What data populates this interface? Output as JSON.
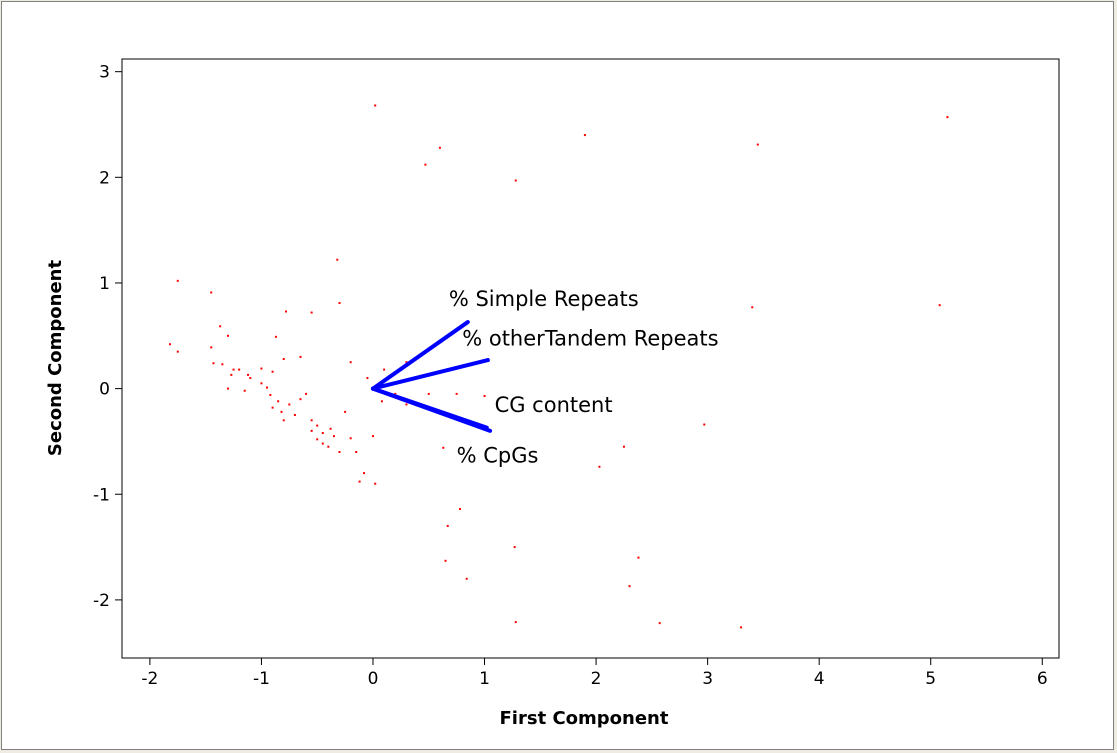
{
  "chart_data": {
    "type": "scatter",
    "title": "",
    "xlabel": "First Component",
    "ylabel": "Second Component",
    "xlim": [
      -2.25,
      6.15
    ],
    "ylim": [
      -2.55,
      3.12
    ],
    "x_ticks": [
      -2,
      -1,
      0,
      1,
      2,
      3,
      4,
      5,
      6
    ],
    "y_ticks": [
      -2,
      -1,
      0,
      1,
      2,
      3
    ],
    "grid": false,
    "point_color": "#ff0000",
    "vector_color": "#0000ff",
    "points": [
      {
        "x": 0.02,
        "y": 2.68
      },
      {
        "x": 0.6,
        "y": 2.28
      },
      {
        "x": 0.47,
        "y": 2.12
      },
      {
        "x": 1.28,
        "y": 1.97
      },
      {
        "x": 1.9,
        "y": 2.4
      },
      {
        "x": 3.45,
        "y": 2.31
      },
      {
        "x": 5.15,
        "y": 2.57
      },
      {
        "x": 3.4,
        "y": 0.77
      },
      {
        "x": 5.08,
        "y": 0.79
      },
      {
        "x": 2.97,
        "y": -0.34
      },
      {
        "x": 2.25,
        "y": -0.55
      },
      {
        "x": 2.03,
        "y": -0.74
      },
      {
        "x": 1.27,
        "y": -1.5
      },
      {
        "x": 2.38,
        "y": -1.6
      },
      {
        "x": 2.3,
        "y": -1.87
      },
      {
        "x": 1.28,
        "y": -2.21
      },
      {
        "x": 2.57,
        "y": -2.22
      },
      {
        "x": 3.3,
        "y": -2.26
      },
      {
        "x": 0.78,
        "y": -1.14
      },
      {
        "x": 0.67,
        "y": -1.3
      },
      {
        "x": 0.65,
        "y": -1.63
      },
      {
        "x": 0.84,
        "y": -1.8
      },
      {
        "x": 0.63,
        "y": -0.56
      },
      {
        "x": -0.32,
        "y": 1.22
      },
      {
        "x": -0.3,
        "y": 0.81
      },
      {
        "x": -1.75,
        "y": 1.02
      },
      {
        "x": -1.45,
        "y": 0.91
      },
      {
        "x": -0.78,
        "y": 0.73
      },
      {
        "x": -0.55,
        "y": 0.72
      },
      {
        "x": -1.37,
        "y": 0.59
      },
      {
        "x": -1.3,
        "y": 0.5
      },
      {
        "x": -0.87,
        "y": 0.49
      },
      {
        "x": -1.82,
        "y": 0.42
      },
      {
        "x": -1.75,
        "y": 0.35
      },
      {
        "x": -1.45,
        "y": 0.39
      },
      {
        "x": -1.43,
        "y": 0.24
      },
      {
        "x": -1.35,
        "y": 0.23
      },
      {
        "x": -1.2,
        "y": 0.18
      },
      {
        "x": -1.12,
        "y": 0.13
      },
      {
        "x": -1.0,
        "y": 0.19
      },
      {
        "x": -0.9,
        "y": 0.16
      },
      {
        "x": -0.8,
        "y": 0.28
      },
      {
        "x": -0.65,
        "y": 0.3
      },
      {
        "x": -1.27,
        "y": 0.13
      },
      {
        "x": -1.1,
        "y": 0.1
      },
      {
        "x": -1.0,
        "y": 0.05
      },
      {
        "x": -0.95,
        "y": 0.01
      },
      {
        "x": -1.15,
        "y": -0.02
      },
      {
        "x": -0.92,
        "y": -0.06
      },
      {
        "x": -0.85,
        "y": -0.12
      },
      {
        "x": -0.75,
        "y": -0.15
      },
      {
        "x": -0.9,
        "y": -0.18
      },
      {
        "x": -0.82,
        "y": -0.22
      },
      {
        "x": -0.7,
        "y": -0.25
      },
      {
        "x": -0.6,
        "y": -0.05
      },
      {
        "x": -0.65,
        "y": -0.1
      },
      {
        "x": -0.55,
        "y": -0.3
      },
      {
        "x": -0.5,
        "y": -0.35
      },
      {
        "x": -0.55,
        "y": -0.4
      },
      {
        "x": -0.45,
        "y": -0.42
      },
      {
        "x": -0.5,
        "y": -0.48
      },
      {
        "x": -0.45,
        "y": -0.52
      },
      {
        "x": -0.4,
        "y": -0.55
      },
      {
        "x": -0.35,
        "y": -0.45
      },
      {
        "x": -0.3,
        "y": -0.6
      },
      {
        "x": -0.25,
        "y": -0.22
      },
      {
        "x": -0.2,
        "y": -0.47
      },
      {
        "x": -0.15,
        "y": -0.6
      },
      {
        "x": -0.12,
        "y": -0.88
      },
      {
        "x": -0.08,
        "y": -0.8
      },
      {
        "x": 0.02,
        "y": -0.9
      },
      {
        "x": 0.0,
        "y": -0.45
      },
      {
        "x": -0.2,
        "y": 0.25
      },
      {
        "x": -0.05,
        "y": 0.1
      },
      {
        "x": 0.15,
        "y": 0.12
      },
      {
        "x": 0.3,
        "y": 0.25
      },
      {
        "x": 0.2,
        "y": -0.05
      },
      {
        "x": 0.5,
        "y": -0.05
      },
      {
        "x": 0.75,
        "y": -0.05
      },
      {
        "x": 1.0,
        "y": -0.07
      },
      {
        "x": 0.3,
        "y": -0.15
      },
      {
        "x": 0.1,
        "y": 0.18
      },
      {
        "x": -1.25,
        "y": 0.18
      },
      {
        "x": -1.3,
        "y": 0.0
      },
      {
        "x": -0.8,
        "y": -0.3
      },
      {
        "x": -0.38,
        "y": -0.38
      },
      {
        "x": 0.08,
        "y": -0.12
      }
    ],
    "vectors": [
      {
        "label": "% Simple Repeats",
        "x": 0.85,
        "y": 0.63,
        "label_x": 0.68,
        "label_y": 0.78
      },
      {
        "label": "% otherTandem Repeats",
        "x": 1.03,
        "y": 0.27,
        "label_x": 0.8,
        "label_y": 0.41
      },
      {
        "label": "CG content",
        "x": 1.05,
        "y": -0.4,
        "label_x": 1.09,
        "label_y": -0.22
      },
      {
        "label": "% CpGs",
        "x": 1.02,
        "y": -0.37,
        "label_x": 0.75,
        "label_y": -0.7
      }
    ]
  }
}
